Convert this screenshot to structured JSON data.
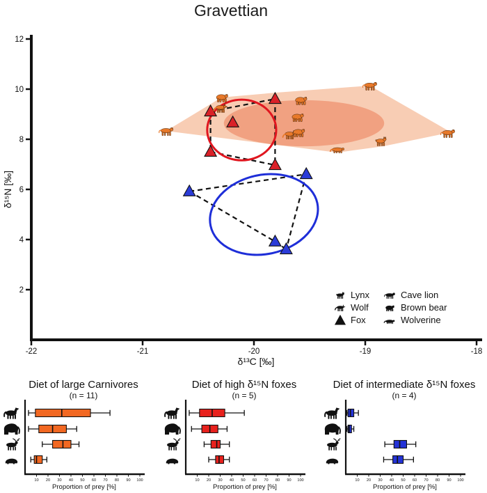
{
  "title": "Gravettian",
  "colors": {
    "hull_fill": "#f8cdb4",
    "core_fill": "#f1a181",
    "icon_orange": "#e8792a",
    "icon_outline": "#3a1c05",
    "fox_high": "#da2128",
    "fox_mid": "#2b3cd8",
    "red_ellipse": "#e0161f",
    "blue_ellipse": "#1e2ed8",
    "box_orange": "#f26822",
    "box_red": "#e8211d",
    "box_blue": "#2433d6",
    "black": "#111111"
  },
  "chart_data": [
    {
      "type": "scatter",
      "title": "Gravettian",
      "xlabel": "δ¹³C [‰]",
      "ylabel": "δ¹⁵N [‰]",
      "xlim": [
        -22,
        -18
      ],
      "ylim": [
        0,
        12.4
      ],
      "xticks": [
        -22,
        -21,
        -20,
        -19,
        -18
      ],
      "yticks": [
        2,
        4,
        6,
        8,
        10,
        12
      ],
      "series": [
        {
          "name": "high-n15-foxes",
          "marker": "triangle",
          "color": "#da2128",
          "points": [
            [
              -20.39,
              9.11
            ],
            [
              -20.19,
              8.67
            ],
            [
              -19.81,
              9.61
            ],
            [
              -20.39,
              7.5
            ],
            [
              -19.81,
              6.97
            ]
          ],
          "hull_edges": [
            [
              0,
              2
            ],
            [
              2,
              4
            ],
            [
              0,
              3
            ],
            [
              3,
              4
            ]
          ]
        },
        {
          "name": "intermediate-n15-foxes",
          "marker": "triangle",
          "color": "#2b3cd8",
          "points": [
            [
              -19.53,
              6.61
            ],
            [
              -20.58,
              5.92
            ],
            [
              -19.81,
              3.92
            ],
            [
              -19.71,
              3.61
            ]
          ],
          "hull_edges": [
            [
              1,
              0
            ],
            [
              1,
              2
            ],
            [
              0,
              3
            ],
            [
              2,
              3
            ]
          ]
        },
        {
          "name": "large-carnivores",
          "marker": "animal-icon",
          "points": [
            {
              "species": "cave-lion",
              "x": -20.79,
              "y": 8.33
            },
            {
              "species": "brown-bear",
              "x": -20.29,
              "y": 9.67
            },
            {
              "species": "wolf",
              "x": -20.3,
              "y": 9.25
            },
            {
              "species": "brown-bear",
              "x": -19.58,
              "y": 9.56
            },
            {
              "species": "brown-bear",
              "x": -19.61,
              "y": 8.89
            },
            {
              "species": "wolf",
              "x": -19.68,
              "y": 8.19
            },
            {
              "species": "brown-bear",
              "x": -19.6,
              "y": 8.28
            },
            {
              "species": "wolverine",
              "x": -19.25,
              "y": 7.64
            },
            {
              "species": "cave-lion",
              "x": -18.96,
              "y": 10.14
            },
            {
              "species": "lynx",
              "x": -18.86,
              "y": 7.92
            },
            {
              "species": "cave-lion",
              "x": -18.26,
              "y": 8.25
            }
          ]
        }
      ],
      "carnivore_hull": [
        [
          -20.79,
          8.33
        ],
        [
          -20.29,
          9.67
        ],
        [
          -19.8,
          9.86
        ],
        [
          -18.96,
          10.14
        ],
        [
          -18.23,
          8.28
        ],
        [
          -18.84,
          7.72
        ],
        [
          -19.25,
          7.47
        ]
      ],
      "ellipses": [
        {
          "name": "carnivore-core-ellipse",
          "cx": -19.55,
          "cy": 8.64,
          "rx": 0.72,
          "ry": 0.92,
          "rot": 0,
          "fill": "core_fill"
        },
        {
          "name": "red-niche-ellipse",
          "cx": -20.11,
          "cy": 8.37,
          "rx": 0.31,
          "ry": 1.21,
          "rot": 0,
          "stroke": "red_ellipse"
        },
        {
          "name": "blue-niche-ellipse",
          "cx": -19.91,
          "cy": 5.0,
          "rx": 0.49,
          "ry": 1.58,
          "rot": -12,
          "stroke": "blue_ellipse"
        }
      ],
      "legend": {
        "items": [
          {
            "icon": "lynx",
            "label": "Lynx"
          },
          {
            "icon": "wolf",
            "label": "Wolf"
          },
          {
            "icon": "fox-triangle",
            "label": "Fox"
          },
          {
            "icon": "cave-lion",
            "label": "Cave lion"
          },
          {
            "icon": "brown-bear",
            "label": "Brown bear"
          },
          {
            "icon": "wolverine",
            "label": "Wolverine"
          }
        ]
      }
    },
    {
      "type": "boxplot-h",
      "title": "Diet of large Carnivores",
      "subtitle": "(n = 11)",
      "xlabel": "Proportion of prey [%]",
      "xlim": [
        0,
        100
      ],
      "xticks": [
        10,
        20,
        30,
        40,
        50,
        60,
        70,
        80,
        90,
        100
      ],
      "color": "box_orange",
      "categories": [
        {
          "icon": "horse"
        },
        {
          "icon": "mammoth"
        },
        {
          "icon": "reindeer"
        },
        {
          "icon": "hare"
        }
      ],
      "boxes": [
        {
          "lo": 3,
          "q1": 9,
          "med": 32,
          "q3": 57,
          "hi": 74
        },
        {
          "lo": 3,
          "q1": 12,
          "med": 24,
          "q3": 36,
          "hi": 45
        },
        {
          "lo": 15,
          "q1": 24,
          "med": 33,
          "q3": 40,
          "hi": 47
        },
        {
          "lo": 5,
          "q1": 8,
          "med": 10,
          "q3": 15,
          "hi": 19
        }
      ]
    },
    {
      "type": "boxplot-h",
      "title": "Diet of high δ¹⁵N foxes",
      "subtitle": "(n = 5)",
      "xlabel": "Proportion of prey [%]",
      "xlim": [
        0,
        100
      ],
      "xticks": [
        10,
        20,
        30,
        40,
        50,
        60,
        70,
        80,
        90,
        100
      ],
      "color": "box_red",
      "categories": [
        {
          "icon": "horse"
        },
        {
          "icon": "mammoth"
        },
        {
          "icon": "reindeer"
        },
        {
          "icon": "hare"
        }
      ],
      "boxes": [
        {
          "lo": 3,
          "q1": 12,
          "med": 23,
          "q3": 34,
          "hi": 51
        },
        {
          "lo": 5,
          "q1": 14,
          "med": 21,
          "q3": 28,
          "hi": 36
        },
        {
          "lo": 16,
          "q1": 22,
          "med": 27,
          "q3": 30,
          "hi": 38
        },
        {
          "lo": 20,
          "q1": 26,
          "med": 29,
          "q3": 33,
          "hi": 38
        }
      ]
    },
    {
      "type": "boxplot-h",
      "title": "Diet of intermediate δ¹⁵N foxes",
      "subtitle": "(n = 4)",
      "xlabel": "Proportion of prey [%]",
      "xlim": [
        0,
        100
      ],
      "xticks": [
        10,
        20,
        30,
        40,
        50,
        60,
        70,
        80,
        90,
        100
      ],
      "color": "box_blue",
      "categories": [
        {
          "icon": "horse"
        },
        {
          "icon": "mammoth"
        },
        {
          "icon": "reindeer"
        },
        {
          "icon": "hare"
        }
      ],
      "boxes": [
        {
          "lo": 1,
          "q1": 2,
          "med": 4,
          "q3": 7,
          "hi": 11
        },
        {
          "lo": 1,
          "q1": 2,
          "med": 3,
          "q3": 5,
          "hi": 7
        },
        {
          "lo": 34,
          "q1": 42,
          "med": 47,
          "q3": 53,
          "hi": 61
        },
        {
          "lo": 33,
          "q1": 41,
          "med": 45,
          "q3": 50,
          "hi": 59
        }
      ]
    }
  ]
}
